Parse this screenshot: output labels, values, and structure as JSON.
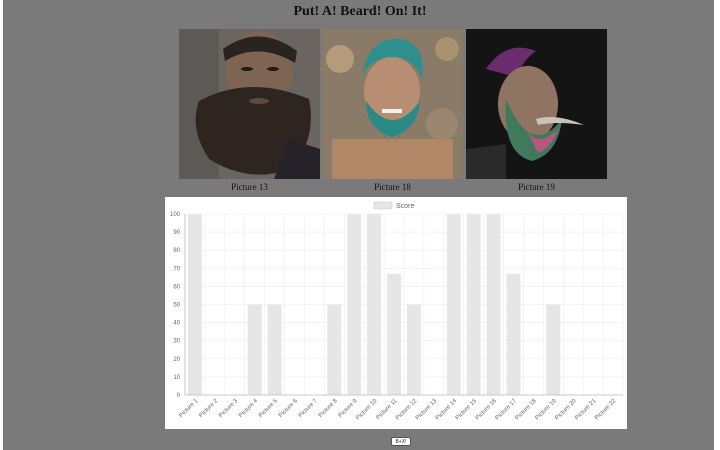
{
  "page": {
    "title": "Put! A! Beard! On! It!"
  },
  "pictures": [
    {
      "caption": "Picture 13"
    },
    {
      "caption": "Picture 18"
    },
    {
      "caption": "Picture 19"
    }
  ],
  "chart_data": {
    "type": "bar",
    "legend": "Score",
    "categories": [
      "Picture 1",
      "Picture 2",
      "Picture 3",
      "Picture 4",
      "Picture 5",
      "Picture 6",
      "Picture 7",
      "Picture 8",
      "Picture 9",
      "Picture 10",
      "Picture 11",
      "Picture 12",
      "Picture 13",
      "Picture 14",
      "Picture 15",
      "Picture 16",
      "Picture 17",
      "Picture 18",
      "Picture 19",
      "Picture 20",
      "Picture 21",
      "Picture 22"
    ],
    "values": [
      100,
      0,
      0,
      50,
      50,
      0,
      0,
      50,
      100,
      100,
      67,
      50,
      0,
      100,
      100,
      100,
      67,
      0,
      50,
      0,
      0,
      0
    ],
    "ylim": [
      0,
      100
    ],
    "yticks": [
      0,
      10,
      20,
      30,
      40,
      50,
      60,
      70,
      80,
      90,
      100
    ],
    "bar_color": "#e6e6e6",
    "grid": true,
    "legend_position": "top"
  },
  "footer": {
    "button_label": "B+X!"
  },
  "colors": {
    "overlay": "#7a7a7a",
    "panel": "#ffffff"
  }
}
